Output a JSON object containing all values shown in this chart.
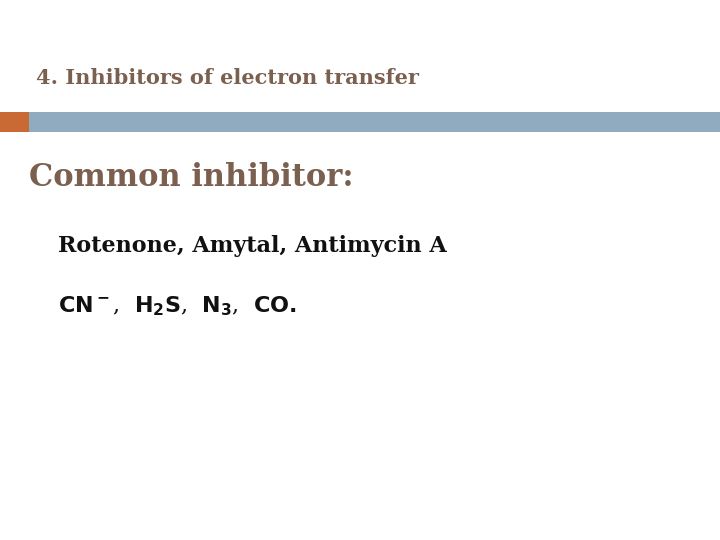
{
  "title": "4. Inhibitors of electron transfer",
  "title_color": "#7B6050",
  "title_fontsize": 15,
  "bar_orange_color": "#C96A35",
  "bar_blue_color": "#90AABF",
  "heading": "Common inhibitor:",
  "heading_color": "#7B6050",
  "heading_fontsize": 22,
  "line1": "Rotenone, Amytal, Antimycin A",
  "line1_color": "#111111",
  "line1_fontsize": 16,
  "background_color": "#FFFFFF"
}
